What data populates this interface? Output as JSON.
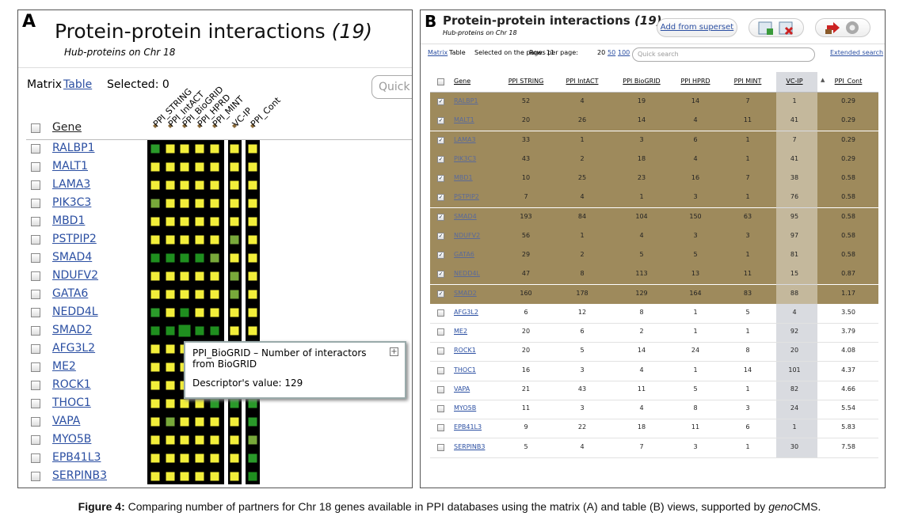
{
  "panel_a": {
    "label": "A",
    "title": "Protein-protein interactions",
    "count": "(19)",
    "subtitle": "Hub-proteins on Chr 18",
    "view_label": "Matrix",
    "view_link": "Table",
    "selected": "Selected: 0",
    "search_placeholder": "Quick search",
    "gene_header": "Gene",
    "columns": [
      "PPI_STRING",
      "PPI_IntACT",
      "PPI_BioGRID",
      "PPI_HPRD",
      "PPI_MINT",
      "VC-IP",
      "PPI_Cont"
    ],
    "cell_colors": [
      [
        "#2a9a2a",
        "#f2ee3a",
        "#f2ee3a",
        "#f2ee3a",
        "#f2ee3a",
        "#f2ee3a",
        "#f2ee3a"
      ],
      [
        "#f2ee3a",
        "#f2ee3a",
        "#f2ee3a",
        "#f2ee3a",
        "#f2ee3a",
        "#f2ee3a",
        "#f2ee3a"
      ],
      [
        "#f2ee3a",
        "#f2ee3a",
        "#f2ee3a",
        "#f2ee3a",
        "#f2ee3a",
        "#f2ee3a",
        "#f2ee3a"
      ],
      [
        "#78a83a",
        "#f2ee3a",
        "#f2ee3a",
        "#f2ee3a",
        "#f2ee3a",
        "#f2ee3a",
        "#f2ee3a"
      ],
      [
        "#f2ee3a",
        "#f2ee3a",
        "#f2ee3a",
        "#f2ee3a",
        "#f2ee3a",
        "#f2ee3a",
        "#f2ee3a"
      ],
      [
        "#f2ee3a",
        "#f2ee3a",
        "#f2ee3a",
        "#f2ee3a",
        "#f2ee3a",
        "#78a83a",
        "#f2ee3a"
      ],
      [
        "#1f8f1f",
        "#1f8f1f",
        "#1f8f1f",
        "#1f8f1f",
        "#78a83a",
        "#f2ee3a",
        "#f2ee3a"
      ],
      [
        "#f2ee3a",
        "#f2ee3a",
        "#f2ee3a",
        "#f2ee3a",
        "#f2ee3a",
        "#78a83a",
        "#f2ee3a"
      ],
      [
        "#f2ee3a",
        "#f2ee3a",
        "#f2ee3a",
        "#f2ee3a",
        "#f2ee3a",
        "#78a83a",
        "#f2ee3a"
      ],
      [
        "#2a9a2a",
        "#f2ee3a",
        "#1f8f1f",
        "#f2ee3a",
        "#f2ee3a",
        "#f2ee3a",
        "#f2ee3a"
      ],
      [
        "#1f8f1f",
        "#1f8f1f",
        "#1f8f1f",
        "#1f8f1f",
        "#1f8f1f",
        "#f2ee3a",
        "#f2ee3a"
      ],
      [
        "#f2ee3a",
        "#f2ee3a",
        "#f2ee3a",
        "#f2ee3a",
        "#f2ee3a",
        "#f2ee3a",
        "#2a9a2a"
      ],
      [
        "#f2ee3a",
        "#f2ee3a",
        "#f2ee3a",
        "#f2ee3a",
        "#f2ee3a",
        "#2a9a2a",
        "#2a9a2a"
      ],
      [
        "#f2ee3a",
        "#f2ee3a",
        "#f2ee3a",
        "#2a9a2a",
        "#f2ee3a",
        "#f2ee3a",
        "#2a9a2a"
      ],
      [
        "#f2ee3a",
        "#f2ee3a",
        "#f2ee3a",
        "#f2ee3a",
        "#2a9a2a",
        "#2a9a2a",
        "#2a9a2a"
      ],
      [
        "#f2ee3a",
        "#78a83a",
        "#f2ee3a",
        "#f2ee3a",
        "#f2ee3a",
        "#f2ee3a",
        "#2a9a2a"
      ],
      [
        "#f2ee3a",
        "#f2ee3a",
        "#f2ee3a",
        "#f2ee3a",
        "#f2ee3a",
        "#f2ee3a",
        "#78a83a"
      ],
      [
        "#f2ee3a",
        "#f2ee3a",
        "#f2ee3a",
        "#f2ee3a",
        "#f2ee3a",
        "#f2ee3a",
        "#2a9a2a"
      ],
      [
        "#f2ee3a",
        "#f2ee3a",
        "#f2ee3a",
        "#f2ee3a",
        "#f2ee3a",
        "#f2ee3a",
        "#1f8f1f"
      ]
    ],
    "tooltip": {
      "text": "PPI_BioGRID – Number of interactors from BioGRID",
      "value_text": "Descriptor's value: 129"
    }
  },
  "panel_b": {
    "label": "B",
    "title": "Protein-protein interactions",
    "count": "(19)",
    "subtitle": "Hub-proteins on Chr 18",
    "add_button": "Add from superset",
    "view_link": "Matrix",
    "view_label": "Table",
    "selected": "Selected on the page: 11",
    "rows_label": "Rows per page:",
    "page_sizes": [
      20,
      50,
      100
    ],
    "search_placeholder": "Quick search",
    "extended_search": "Extended search",
    "columns": [
      "Gene",
      "PPI STRING",
      "PPI IntACT",
      "PPI BioGRID",
      "PPI HPRD",
      "PPI MINT",
      "VC-IP",
      "PPI_Cont"
    ],
    "rows": [
      {
        "gene": "RALBP1",
        "values": [
          52,
          4,
          19,
          14,
          7,
          1,
          "0.29"
        ],
        "checked": true
      },
      {
        "gene": "MALT1",
        "values": [
          20,
          26,
          14,
          4,
          11,
          41,
          "0.29"
        ],
        "checked": true
      },
      {
        "gene": "LAMA3",
        "values": [
          33,
          1,
          3,
          6,
          1,
          7,
          "0.29"
        ],
        "checked": true
      },
      {
        "gene": "PIK3C3",
        "values": [
          43,
          2,
          18,
          4,
          1,
          41,
          "0.29"
        ],
        "checked": true
      },
      {
        "gene": "MBD1",
        "values": [
          10,
          25,
          23,
          16,
          7,
          38,
          "0.58"
        ],
        "checked": true
      },
      {
        "gene": "PSTPIP2",
        "values": [
          7,
          4,
          1,
          3,
          1,
          76,
          "0.58"
        ],
        "checked": true
      },
      {
        "gene": "SMAD4",
        "values": [
          193,
          84,
          104,
          150,
          63,
          95,
          "0.58"
        ],
        "checked": true
      },
      {
        "gene": "NDUFV2",
        "values": [
          56,
          1,
          4,
          3,
          3,
          97,
          "0.58"
        ],
        "checked": true
      },
      {
        "gene": "GATA6",
        "values": [
          29,
          2,
          5,
          5,
          1,
          81,
          "0.58"
        ],
        "checked": true
      },
      {
        "gene": "NEDD4L",
        "values": [
          47,
          8,
          113,
          13,
          11,
          15,
          "0.87"
        ],
        "checked": true
      },
      {
        "gene": "SMAD2",
        "values": [
          160,
          178,
          129,
          164,
          83,
          88,
          "1.17"
        ],
        "checked": true
      },
      {
        "gene": "AFG3L2",
        "values": [
          6,
          12,
          8,
          1,
          5,
          4,
          "3.50"
        ],
        "checked": false
      },
      {
        "gene": "ME2",
        "values": [
          20,
          6,
          2,
          1,
          1,
          92,
          "3.79"
        ],
        "checked": false
      },
      {
        "gene": "ROCK1",
        "values": [
          20,
          5,
          14,
          24,
          8,
          20,
          "4.08"
        ],
        "checked": false
      },
      {
        "gene": "THOC1",
        "values": [
          16,
          3,
          4,
          1,
          14,
          101,
          "4.37"
        ],
        "checked": false
      },
      {
        "gene": "VAPA",
        "values": [
          21,
          43,
          11,
          5,
          1,
          82,
          "4.66"
        ],
        "checked": false
      },
      {
        "gene": "MYO5B",
        "values": [
          11,
          3,
          4,
          8,
          3,
          24,
          "5.54"
        ],
        "checked": false
      },
      {
        "gene": "EPB41L3",
        "values": [
          9,
          22,
          18,
          11,
          6,
          1,
          "5.83"
        ],
        "checked": false
      },
      {
        "gene": "SERPINB3",
        "values": [
          5,
          4,
          7,
          3,
          1,
          30,
          "7.58"
        ],
        "checked": false
      }
    ]
  },
  "caption": {
    "label": "Figure 4:",
    "text": "Comparing number of partners for Chr 18 genes available in PPI databases using the matrix (A) and table (B) views, supported by",
    "emphasis": "geno",
    "after": "CMS."
  }
}
